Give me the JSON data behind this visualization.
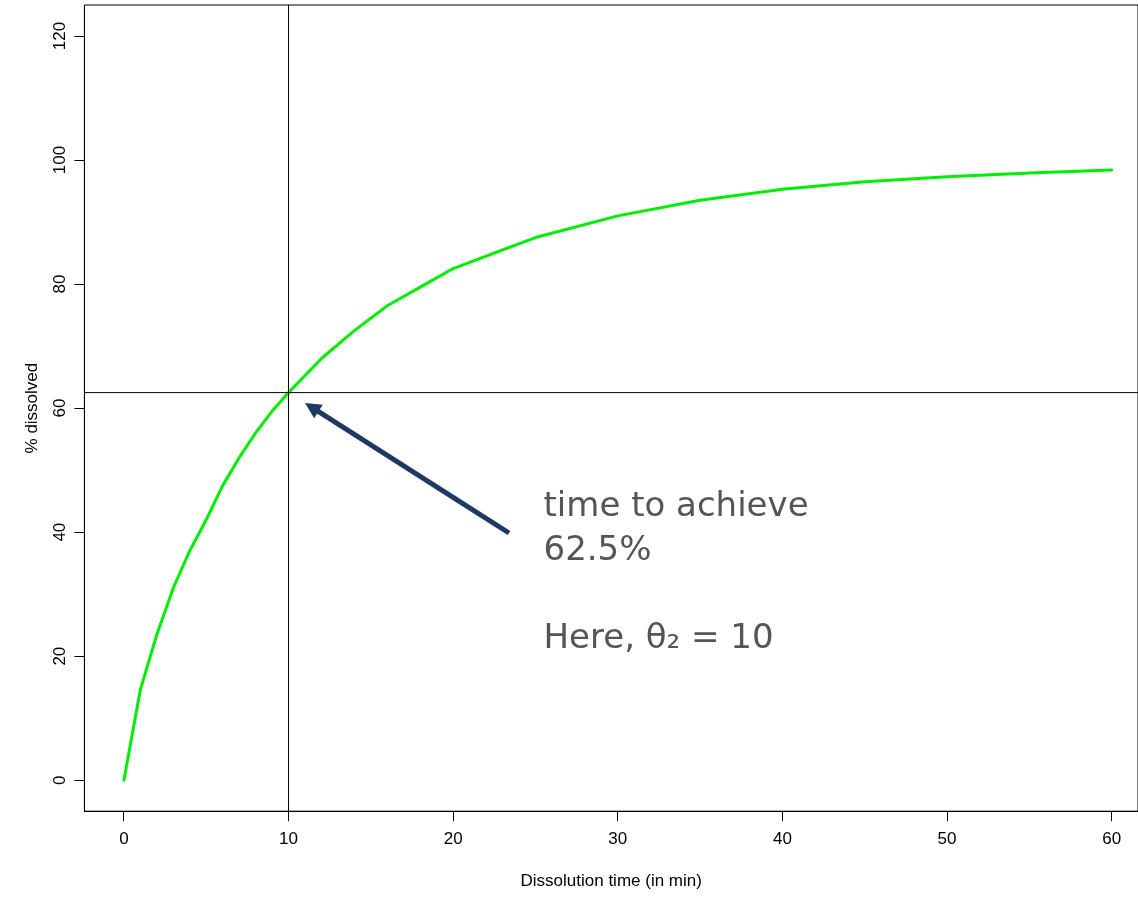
{
  "chart_data": {
    "type": "line",
    "xlabel": "Dissolution time (in min)",
    "ylabel": "% dissolved",
    "x": [
      0,
      1,
      2,
      3,
      4,
      5,
      6,
      7,
      8,
      9,
      10,
      12,
      14,
      16,
      18,
      20,
      25,
      30,
      35,
      40,
      45,
      50,
      55,
      60
    ],
    "series": [
      {
        "color": "#00ee00",
        "values": [
          0,
          14.6,
          23.5,
          31,
          37,
          42,
          47.5,
          52,
          56,
          59.5,
          62.5,
          68,
          72.5,
          76.5,
          79.5,
          82.5,
          87.5,
          91,
          93.5,
          95.3,
          96.5,
          97.3,
          97.9,
          98.4
        ]
      }
    ],
    "xlim": [
      -2.4,
      61.6
    ],
    "ylim": [
      -5,
      125
    ],
    "xticks": [
      0,
      10,
      20,
      30,
      40,
      50,
      60
    ],
    "yticks": [
      0,
      20,
      40,
      60,
      80,
      100,
      120
    ],
    "ref_lines": [
      {
        "axis": "x",
        "value": 10,
        "color": "#000000"
      },
      {
        "axis": "y",
        "value": 62.5,
        "color": "#000000"
      }
    ],
    "annotations": [
      "time to achieve\n62.5%",
      "Here, θ₂ = 10"
    ],
    "grid": false,
    "legend": false,
    "marker": "none",
    "line_style": "solid"
  }
}
